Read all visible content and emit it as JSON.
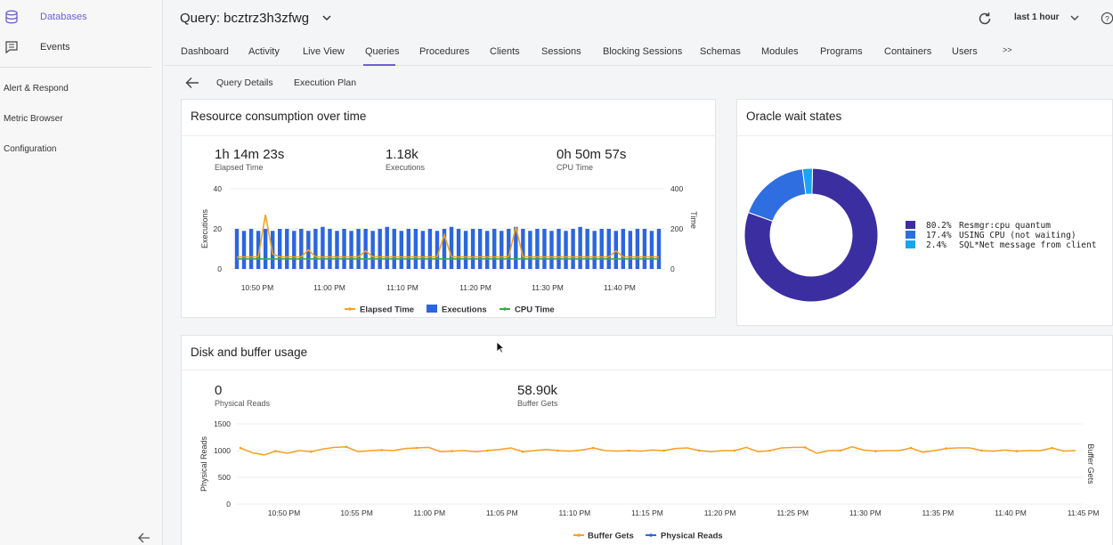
{
  "sidebar": {
    "items": [
      {
        "label": "Databases",
        "icon": "database-icon",
        "active": true
      },
      {
        "label": "Events",
        "icon": "events-icon",
        "active": false
      }
    ],
    "plain_items": [
      "Alert & Respond",
      "Metric Browser",
      "Configuration"
    ]
  },
  "header": {
    "query_title": "Query: bcztrz3h3zfwg",
    "time_range": "last 1 hour"
  },
  "tabs": [
    "Dashboard",
    "Activity",
    "Live View",
    "Queries",
    "Procedures",
    "Clients",
    "Sessions",
    "Blocking Sessions",
    "Schemas",
    "Modules",
    "Programs",
    "Containers",
    "Users",
    ">>"
  ],
  "active_tab": "Queries",
  "subnav": {
    "links": [
      "Query Details",
      "Execution Plan"
    ]
  },
  "resource_card": {
    "title": "Resource consumption over time",
    "stats": [
      {
        "value": "1h 14m 23s",
        "label": "Elapsed Time"
      },
      {
        "value": "1.18k",
        "label": "Executions"
      },
      {
        "value": "0h 50m 57s",
        "label": "CPU Time"
      }
    ]
  },
  "wait_card": {
    "title": "Oracle wait states"
  },
  "disk_card": {
    "title": "Disk and buffer usage",
    "stats": [
      {
        "value": "0",
        "label": "Physical Reads"
      },
      {
        "value": "58.90k",
        "label": "Buffer Gets"
      }
    ]
  },
  "colors": {
    "accent": "#6c5fd3",
    "bar_blue": "#2b66de",
    "orange": "#f5a020",
    "green": "#3aa84a",
    "donut_main": "#3a2ea0",
    "donut_mid": "#2e6ee0",
    "donut_small": "#1aa6ee"
  },
  "chart_data": [
    {
      "type": "bar",
      "title": "Resource consumption over time",
      "ylabel": "Executions",
      "y2label": "Time",
      "ylim": [
        0,
        40
      ],
      "y2lim": [
        0,
        400
      ],
      "yticks": [
        "40",
        "20",
        "0"
      ],
      "y2ticks": [
        "400",
        "200",
        "0"
      ],
      "xticks": [
        "10:50 PM",
        "11:00 PM",
        "11:10 PM",
        "11:20 PM",
        "11:30 PM",
        "11:40 PM"
      ],
      "legend": [
        "Elapsed Time",
        "Executions",
        "CPU Time"
      ],
      "series": [
        {
          "name": "Executions",
          "values": [
            20,
            19,
            20,
            19,
            20,
            19,
            20,
            20,
            19,
            20,
            19,
            20,
            21,
            20,
            19,
            20,
            19,
            20,
            20,
            19,
            20,
            21,
            20,
            19,
            20,
            20,
            19,
            20,
            19,
            20,
            21,
            20,
            19,
            20,
            20,
            19,
            20,
            19,
            20,
            21,
            20,
            19,
            20,
            20,
            19,
            20,
            19,
            20,
            21,
            20,
            19,
            20,
            20,
            19,
            20,
            19,
            20,
            20,
            19,
            20
          ]
        },
        {
          "name": "Elapsed Time",
          "values": [
            60,
            60,
            60,
            60,
            270,
            75,
            60,
            60,
            60,
            60,
            95,
            60,
            60,
            60,
            60,
            60,
            60,
            60,
            90,
            60,
            60,
            60,
            60,
            60,
            60,
            60,
            60,
            60,
            60,
            170,
            60,
            60,
            60,
            60,
            60,
            60,
            60,
            60,
            60,
            210,
            60,
            60,
            60,
            60,
            60,
            60,
            60,
            60,
            60,
            60,
            60,
            60,
            60,
            90,
            60,
            60,
            60,
            60,
            60,
            60
          ]
        },
        {
          "name": "CPU Time",
          "values": [
            50,
            50,
            50,
            50,
            50,
            50,
            50,
            50,
            50,
            50,
            50,
            50,
            50,
            50,
            50,
            50,
            50,
            50,
            50,
            50,
            50,
            50,
            50,
            50,
            50,
            50,
            50,
            50,
            50,
            50,
            50,
            50,
            50,
            50,
            50,
            50,
            50,
            50,
            50,
            50,
            50,
            50,
            50,
            50,
            50,
            50,
            50,
            50,
            50,
            50,
            50,
            50,
            50,
            50,
            50,
            50,
            50,
            50,
            50,
            50
          ]
        }
      ]
    },
    {
      "type": "pie",
      "title": "Oracle wait states",
      "slices": [
        {
          "pct": "80.2%",
          "name": "Resmgr:cpu quantum",
          "value": 80.2
        },
        {
          "pct": "17.4%",
          "name": "USING CPU (not waiting)",
          "value": 17.4
        },
        {
          "pct": "2.4%",
          "name": "SQL*Net message from client",
          "value": 2.4
        }
      ]
    },
    {
      "type": "line",
      "title": "Disk and buffer usage",
      "ylabel": "Physical Reads",
      "y2label": "Buffer Gets",
      "ylim": [
        0,
        1500
      ],
      "yticks": [
        "1500",
        "1000",
        "500",
        "0"
      ],
      "xticks": [
        "10:50 PM",
        "10:55 PM",
        "11:00 PM",
        "11:05 PM",
        "11:10 PM",
        "11:15 PM",
        "11:20 PM",
        "11:25 PM",
        "11:30 PM",
        "11:35 PM",
        "11:40 PM",
        "11:45 PM"
      ],
      "legend": [
        "Buffer Gets",
        "Physical Reads"
      ],
      "series": [
        {
          "name": "Buffer Gets",
          "values": [
            1050,
            960,
            920,
            990,
            950,
            1000,
            980,
            1030,
            1060,
            1070,
            980,
            1000,
            1010,
            1000,
            1040,
            1050,
            1060,
            980,
            990,
            1000,
            980,
            1000,
            1020,
            1050,
            980,
            1000,
            1020,
            1000,
            990,
            1010,
            1050,
            1000,
            990,
            1000,
            990,
            1010,
            1000,
            1040,
            1050,
            1000,
            980,
            1000,
            1000,
            1060,
            980,
            1000,
            1050,
            1060,
            1060,
            950,
            1000,
            1000,
            1070,
            1010,
            990,
            1000,
            1000,
            1050,
            970,
            1000,
            1040,
            1050,
            1050,
            1000,
            990,
            1010,
            990,
            1000,
            1000,
            1050,
            990,
            1000
          ]
        },
        {
          "name": "Physical Reads",
          "values": [
            0,
            0,
            0,
            0,
            0,
            0,
            0,
            0,
            0,
            0,
            0,
            0
          ]
        }
      ]
    }
  ]
}
